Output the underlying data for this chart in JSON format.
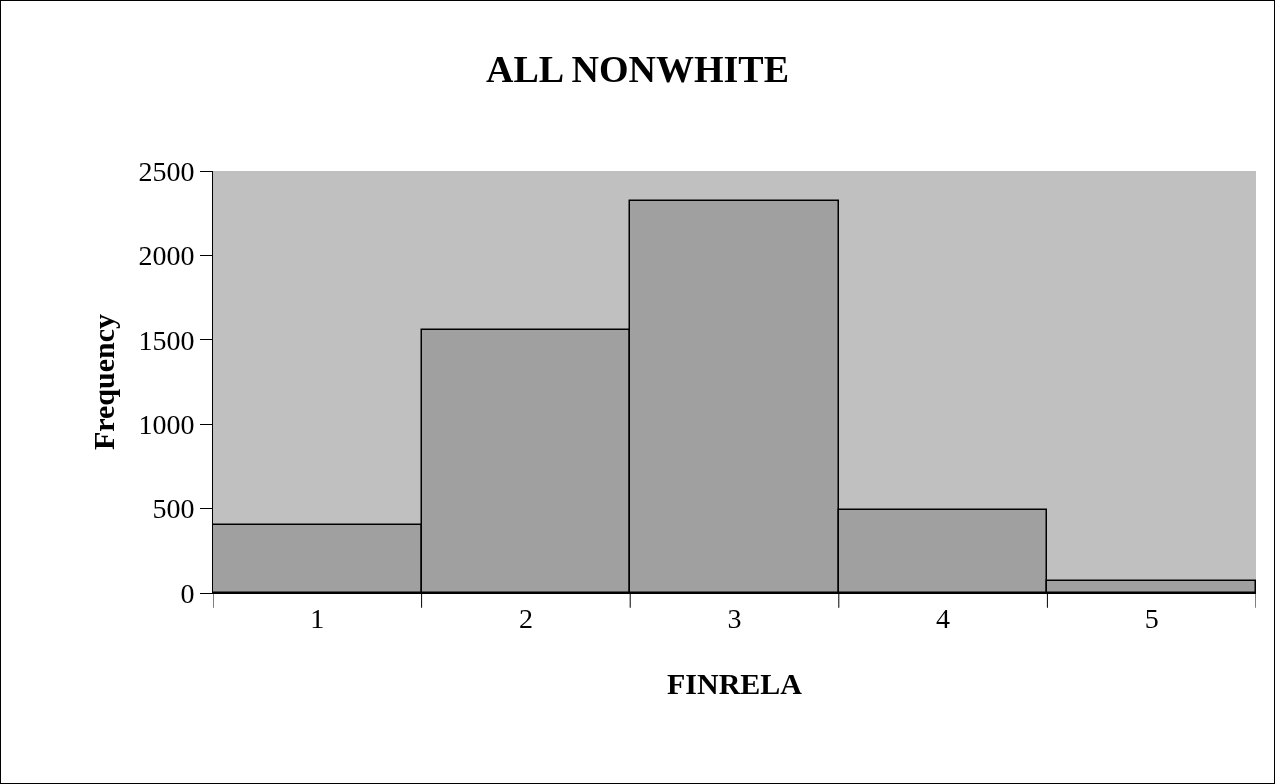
{
  "chart_data": {
    "type": "bar",
    "title": "ALL NONWHITE",
    "xlabel": "FINRELA",
    "ylabel": "Frequency",
    "categories": [
      "1",
      "2",
      "3",
      "4",
      "5"
    ],
    "values": [
      400,
      1560,
      2320,
      490,
      70
    ],
    "color": "#a0a0a0",
    "ylim": [
      0,
      2500
    ],
    "yticks": [
      0,
      500,
      1000,
      1500,
      2000,
      2500
    ]
  }
}
